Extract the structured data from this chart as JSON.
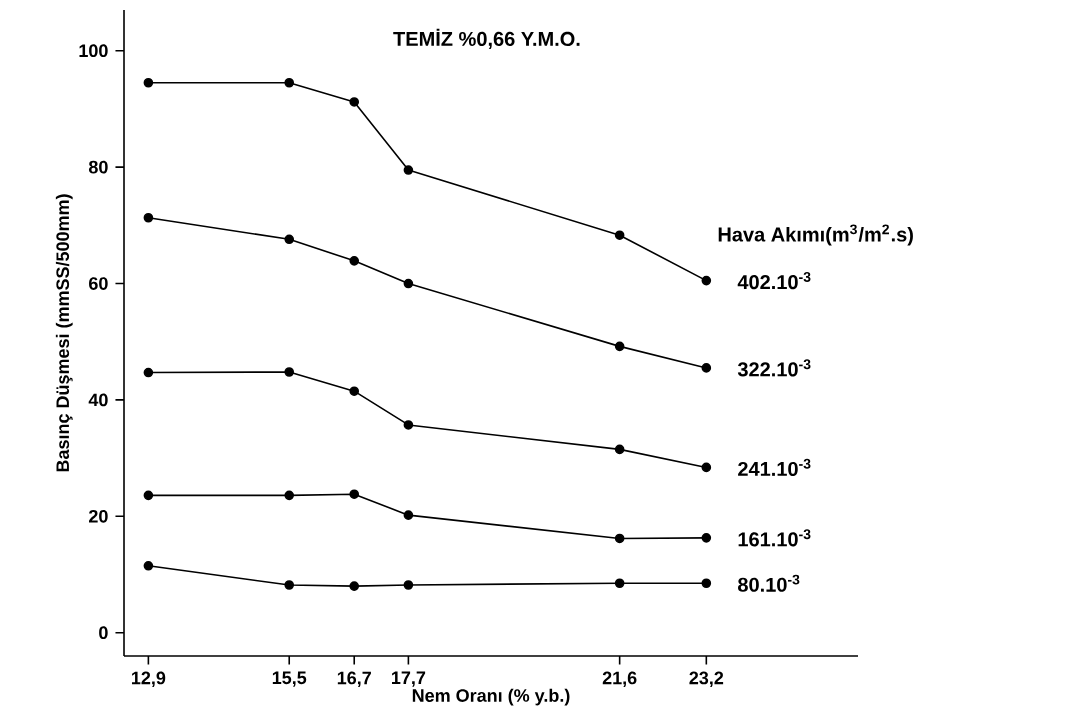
{
  "chart_data": {
    "type": "line",
    "title": "TEMİZ %0,66 Y.M.O.",
    "xlabel": "Nem Oranı (% y.b.)",
    "ylabel": "Basınç Düşmesi (mmSS/500mm)",
    "legend_title": "Hava Akımı(m$^{3}$/m$^{2}$.s)",
    "x": [
      12.9,
      15.5,
      16.7,
      17.7,
      21.6,
      23.2
    ],
    "xlim": [
      12.45,
      26
    ],
    "ylim": [
      -4,
      107
    ],
    "xticks": [
      {
        "value": 12.9,
        "label": "12,9"
      },
      {
        "value": 15.5,
        "label": "15,5"
      },
      {
        "value": 16.7,
        "label": "16,7"
      },
      {
        "value": 17.7,
        "label": "17,7"
      },
      {
        "value": 21.6,
        "label": "21,6"
      },
      {
        "value": 23.2,
        "label": "23,2"
      }
    ],
    "yticks": [
      0,
      20,
      40,
      60,
      80,
      100
    ],
    "marker": "circle",
    "series": [
      {
        "name": "402.10$^{-3}$",
        "color": "#000000",
        "values": [
          94.5,
          94.5,
          91.2,
          79.5,
          68.3,
          60.5
        ]
      },
      {
        "name": "322.10$^{-3}$",
        "color": "#000000",
        "values": [
          71.3,
          67.6,
          63.9,
          60,
          49.2,
          45.5
        ]
      },
      {
        "name": "241.10$^{-3}$",
        "color": "#000000",
        "values": [
          44.7,
          44.8,
          41.5,
          35.7,
          31.5,
          28.4
        ]
      },
      {
        "name": "161.10$^{-3}$",
        "color": "#000000",
        "values": [
          23.6,
          23.6,
          23.8,
          20.2,
          16.2,
          16.3
        ]
      },
      {
        "name": "80.10$^{-3}$",
        "color": "#000000",
        "values": [
          11.5,
          8.2,
          8,
          8.2,
          8.5,
          8.5
        ]
      }
    ]
  }
}
